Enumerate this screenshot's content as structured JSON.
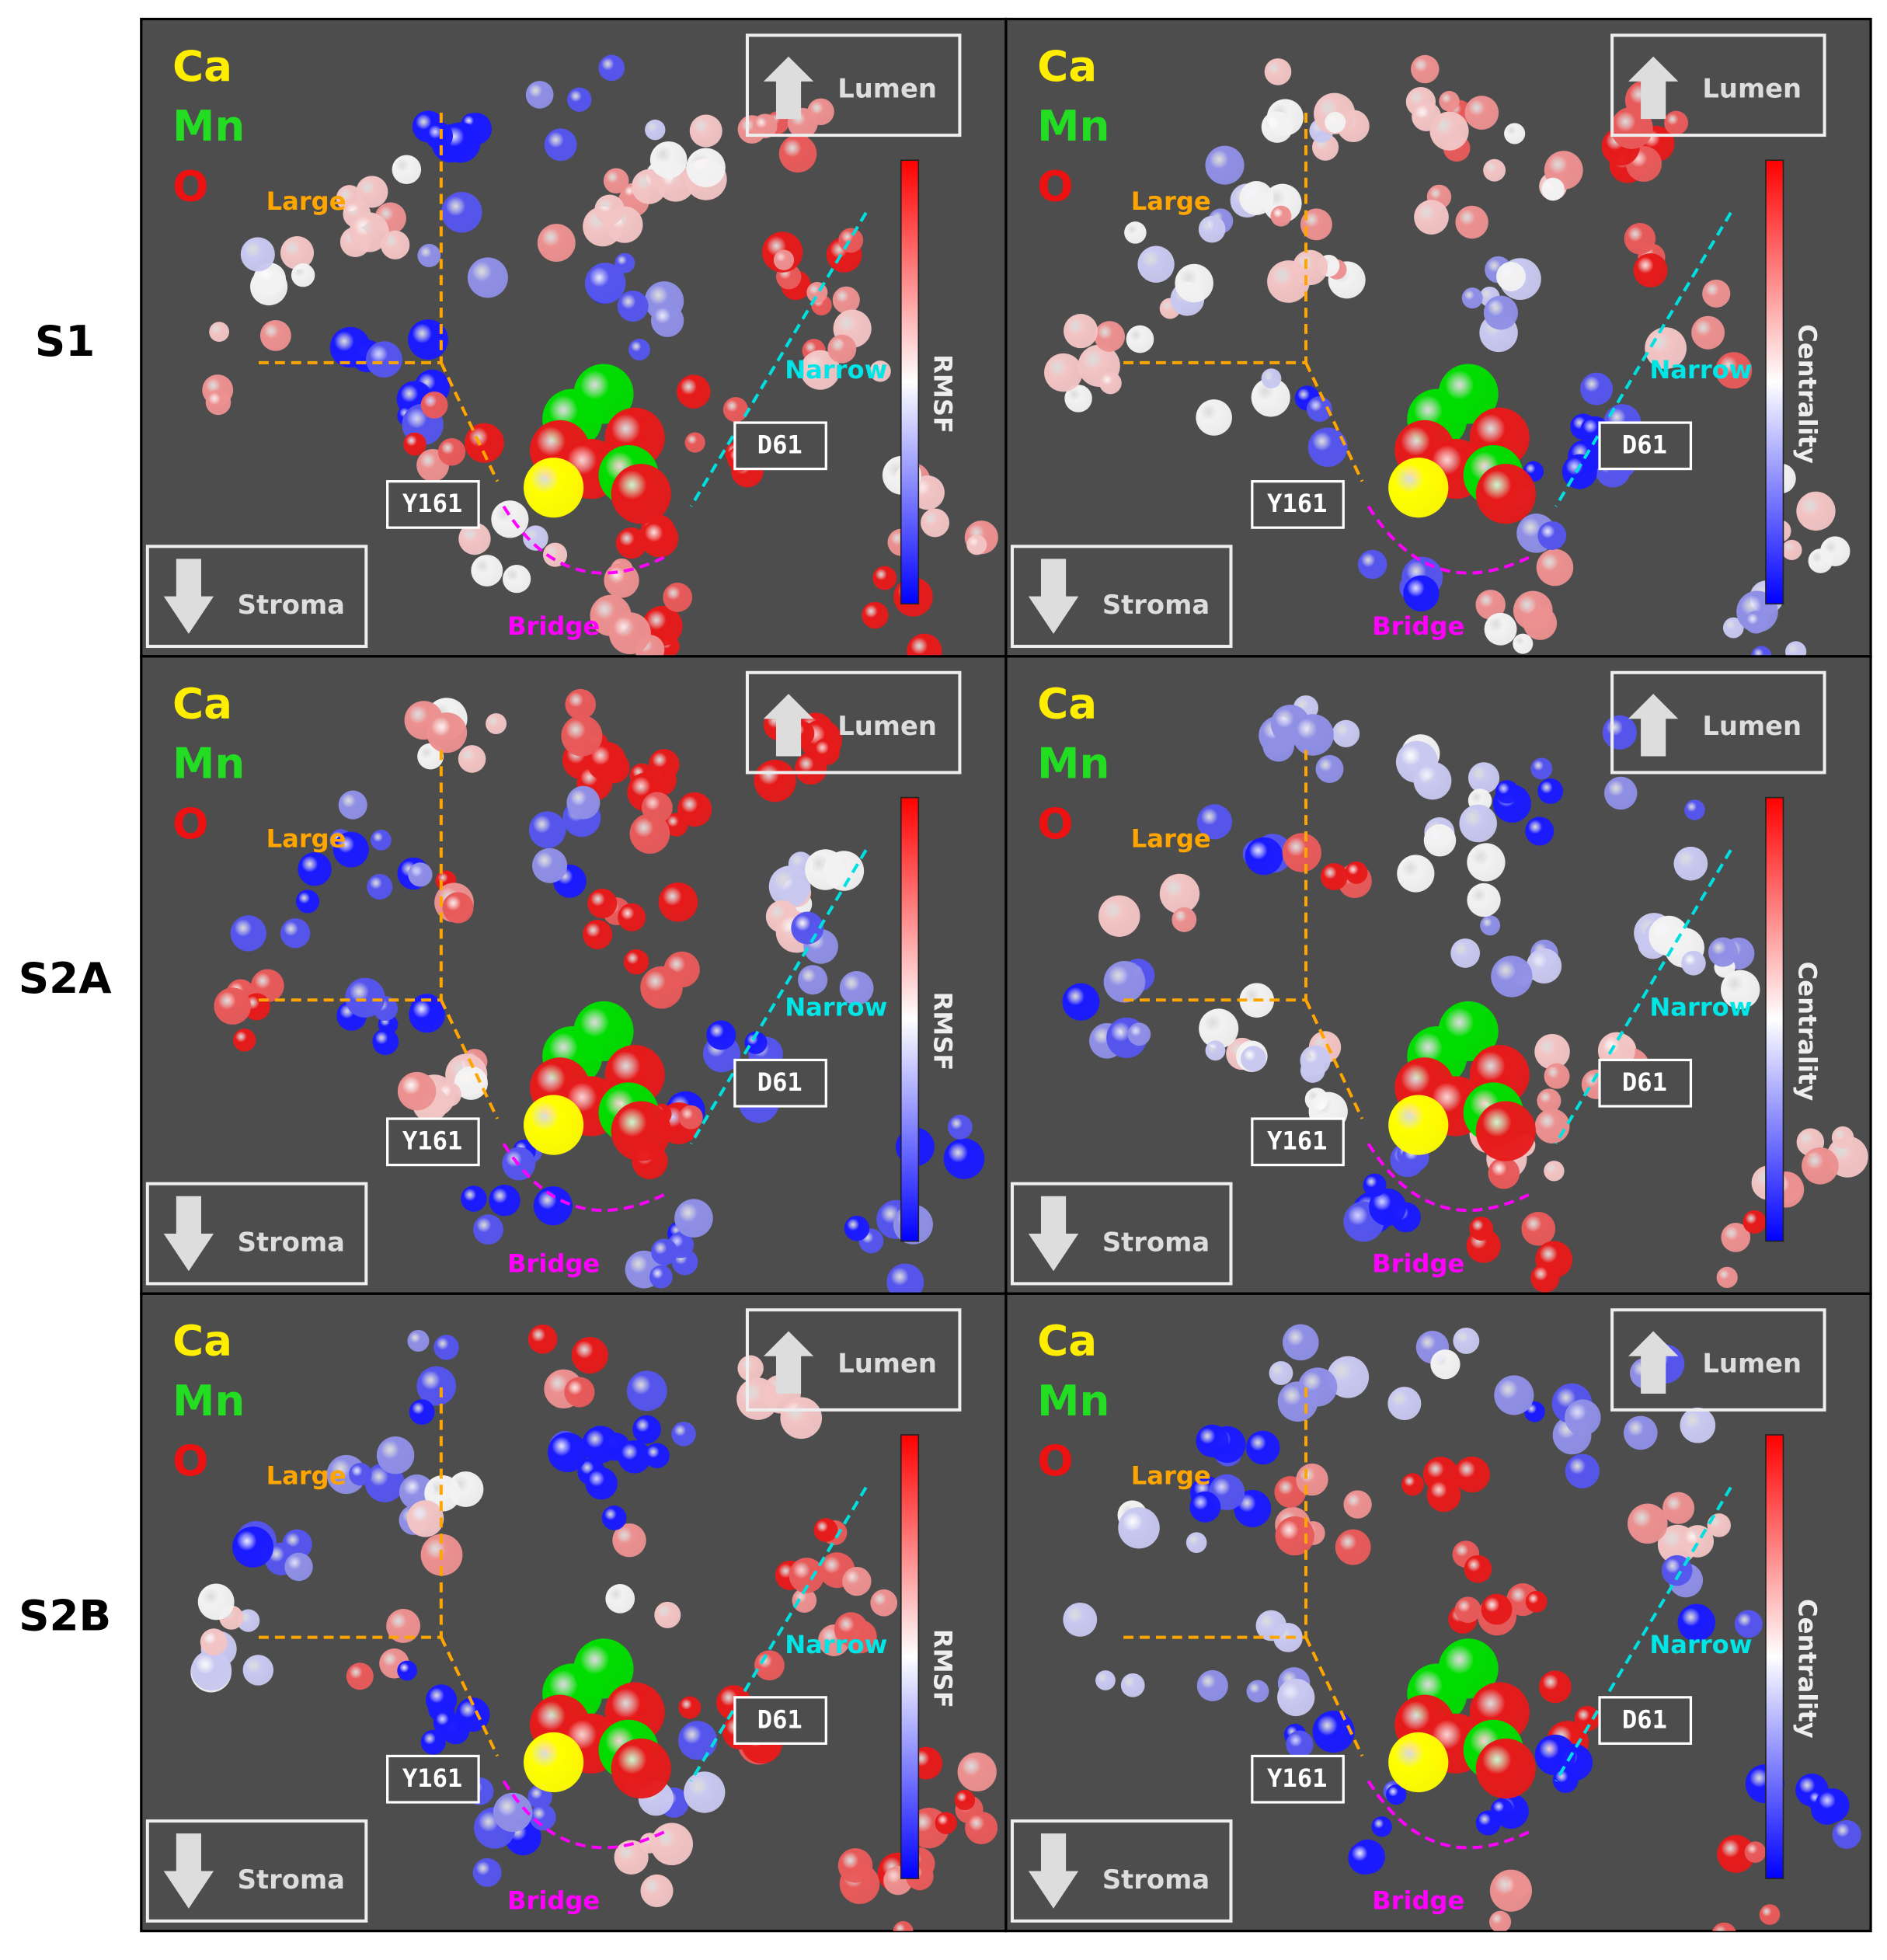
{
  "row_labels": [
    "S1",
    "S2A",
    "S2B"
  ],
  "panels": [
    {
      "legend": [
        "Ca",
        "Mn",
        "O"
      ],
      "channels": [
        "Large",
        "Narrow",
        "Bridge"
      ],
      "residues": [
        "Y161",
        "D61"
      ],
      "directions": [
        "Lumen",
        "Stroma"
      ],
      "colorbar_label": "RMSF"
    },
    {
      "legend": [
        "Ca",
        "Mn",
        "O"
      ],
      "channels": [
        "Large",
        "Narrow",
        "Bridge"
      ],
      "residues": [
        "Y161",
        "D61"
      ],
      "directions": [
        "Lumen",
        "Stroma"
      ],
      "colorbar_label": "Centrality"
    },
    {
      "legend": [
        "Ca",
        "Mn",
        "O"
      ],
      "channels": [
        "Large",
        "Narrow",
        "Bridge"
      ],
      "residues": [
        "Y161",
        "D61"
      ],
      "directions": [
        "Lumen",
        "Stroma"
      ],
      "colorbar_label": "RMSF"
    },
    {
      "legend": [
        "Ca",
        "Mn",
        "O"
      ],
      "channels": [
        "Large",
        "Narrow",
        "Bridge"
      ],
      "residues": [
        "Y161",
        "D61"
      ],
      "directions": [
        "Lumen",
        "Stroma"
      ],
      "colorbar_label": "Centrality"
    },
    {
      "legend": [
        "Ca",
        "Mn",
        "O"
      ],
      "channels": [
        "Large",
        "Narrow",
        "Bridge"
      ],
      "residues": [
        "Y161",
        "D61"
      ],
      "directions": [
        "Lumen",
        "Stroma"
      ],
      "colorbar_label": "RMSF"
    },
    {
      "legend": [
        "Ca",
        "Mn",
        "O"
      ],
      "channels": [
        "Large",
        "Narrow",
        "Bridge"
      ],
      "residues": [
        "Y161",
        "D61"
      ],
      "directions": [
        "Lumen",
        "Stroma"
      ],
      "colorbar_label": "Centrality"
    }
  ]
}
